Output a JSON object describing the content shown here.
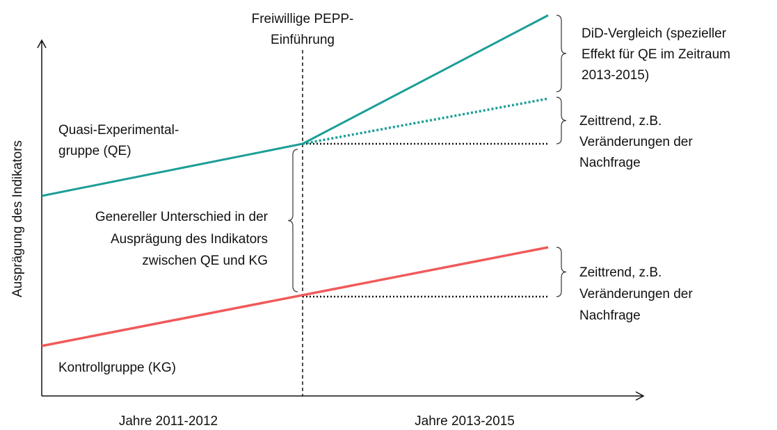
{
  "intervention_label": [
    "Freiwillige PEPP-",
    "Einführung"
  ],
  "y_axis_label": "Ausprägung des Indikators",
  "qe_label": [
    "Quasi-Experimental-",
    "gruppe (QE)"
  ],
  "difference_label": [
    "Genereller Unterschied in der",
    "Ausprägung des Indikators",
    "zwischen QE und KG"
  ],
  "kg_label": "Kontrollgruppe (KG)",
  "periods": [
    "Jahre 2011-2012",
    "Jahre 2013-2015"
  ],
  "annotations": [
    [
      "DiD-Vergleich (spezieller",
      "Effekt für QE im Zeitraum",
      "2013-2015)"
    ],
    [
      "Zeittrend, z.B.",
      "Veränderungen der",
      "Nachfrage"
    ],
    [
      "Zeittrend, z.B.",
      "Veränderungen der",
      "Nachfrage"
    ]
  ]
}
